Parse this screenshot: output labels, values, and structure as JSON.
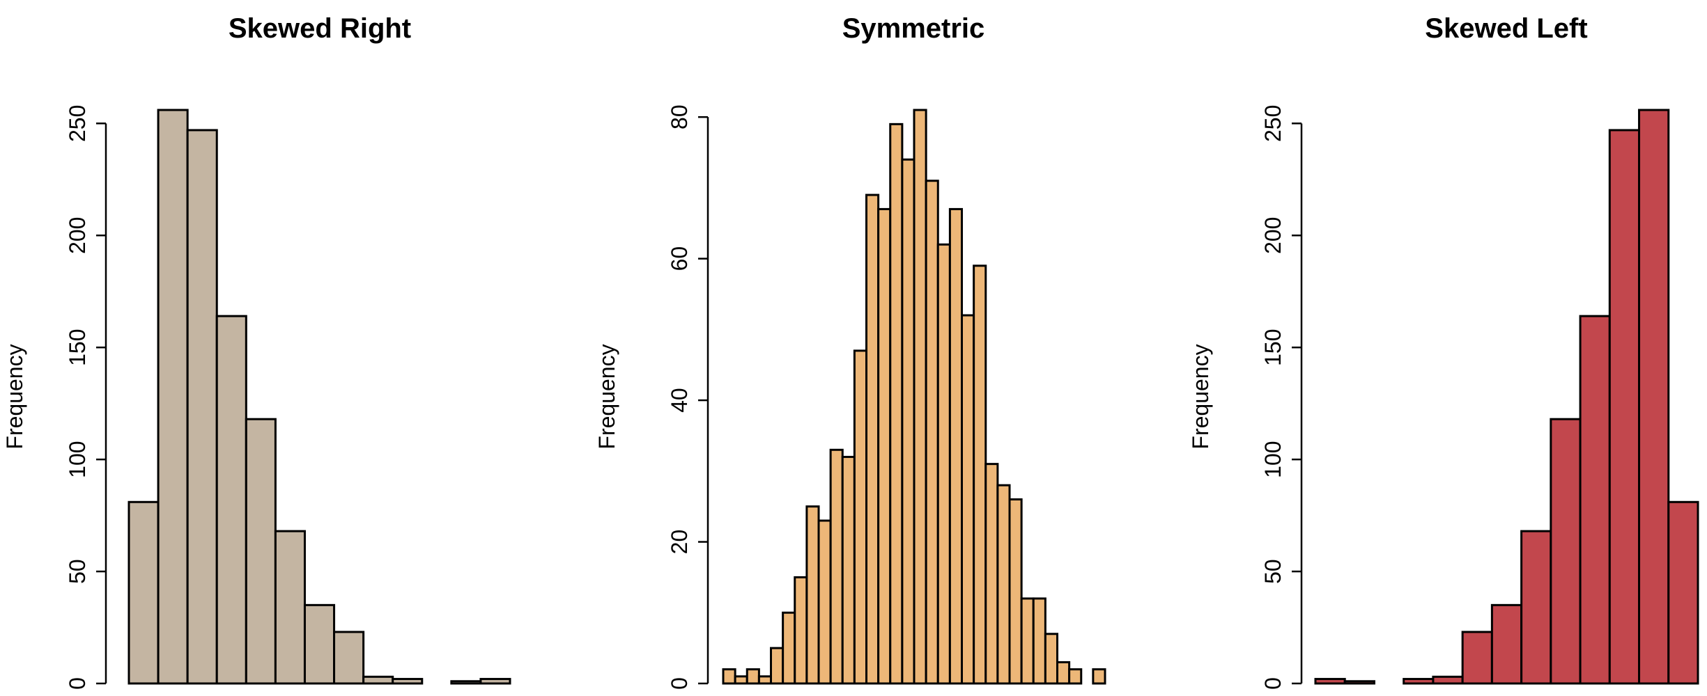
{
  "chart_data": [
    {
      "type": "bar",
      "title": "Skewed Right",
      "xlabel": "",
      "ylabel": "Frequency",
      "ylim": [
        0,
        256
      ],
      "yticks": [
        0,
        50,
        100,
        150,
        200,
        250
      ],
      "fill": "#c4b5a2",
      "values": [
        81,
        256,
        247,
        164,
        118,
        68,
        35,
        23,
        3,
        2,
        0,
        1,
        2
      ]
    },
    {
      "type": "bar",
      "title": "Symmetric",
      "xlabel": "",
      "ylabel": "Frequency",
      "ylim": [
        0,
        81
      ],
      "yticks": [
        0,
        20,
        40,
        60,
        80
      ],
      "fill": "#edb778",
      "values": [
        2,
        1,
        2,
        1,
        5,
        10,
        15,
        25,
        23,
        33,
        32,
        47,
        69,
        67,
        79,
        74,
        81,
        71,
        62,
        67,
        52,
        59,
        31,
        28,
        26,
        12,
        12,
        7,
        3,
        2,
        0,
        2
      ]
    },
    {
      "type": "bar",
      "title": "Skewed Left",
      "xlabel": "",
      "ylabel": "Frequency",
      "ylim": [
        0,
        256
      ],
      "yticks": [
        0,
        50,
        100,
        150,
        200,
        250
      ],
      "fill": "#c2474d",
      "values": [
        2,
        1,
        0,
        2,
        3,
        23,
        35,
        68,
        118,
        164,
        247,
        256,
        81
      ]
    }
  ]
}
